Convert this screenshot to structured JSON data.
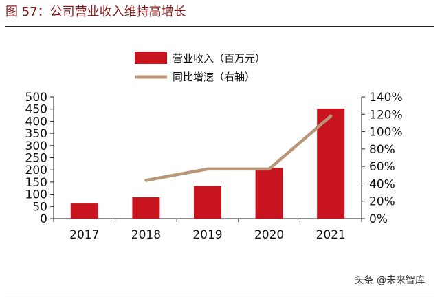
{
  "figure": {
    "label": "图 57：",
    "title": "公司营业收入维持高增长"
  },
  "watermark": "头条 @未来智库",
  "colors": {
    "title": "#8a1818",
    "bar": "#c8141e",
    "line": "#b99678",
    "axis": "#222222"
  },
  "chart_data": {
    "type": "bar",
    "categories": [
      "2017",
      "2018",
      "2019",
      "2020",
      "2021"
    ],
    "series": [
      {
        "name": "营业收入（百万元）",
        "type": "bar",
        "axis": "left",
        "values": [
          62,
          88,
          134,
          208,
          452
        ]
      },
      {
        "name": "同比增速（右轴）",
        "type": "line",
        "axis": "right",
        "values": [
          null,
          44,
          57,
          57,
          118
        ]
      }
    ],
    "y_left": {
      "min": 0,
      "max": 500,
      "step": 50,
      "ticks": [
        "0",
        "50",
        "100",
        "150",
        "200",
        "250",
        "300",
        "350",
        "400",
        "450",
        "500"
      ]
    },
    "y_right": {
      "min": 0,
      "max": 140,
      "step": 20,
      "ticks": [
        "0%",
        "20%",
        "40%",
        "60%",
        "80%",
        "100%",
        "120%",
        "140%"
      ]
    },
    "legend_position": "top-center",
    "grid": false
  }
}
